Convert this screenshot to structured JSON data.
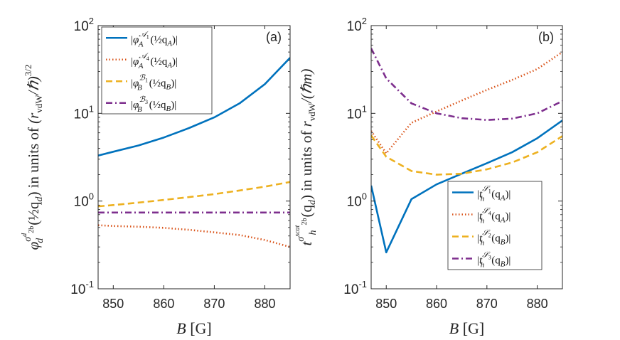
{
  "chart_data": [
    {
      "id": "a",
      "type": "line",
      "panel_label": "(a)",
      "title": "",
      "xlabel": "B [G]",
      "ylabel": "φ_d^{σ^d_{2b}}(½q_d) in units of (r_vdW/ℏ)^{3/2}",
      "ylabel_parts": {
        "sym": "φ",
        "sub": "d",
        "sup": "σ",
        "supsup": "d",
        "supsub": "2b",
        "arg": "(½q",
        "argsub": "d",
        "argclose": ")",
        "units": " in units of ",
        "unitsexpr": "(r",
        "unitssub": "vdW",
        "unitsrest": "/ℏ)",
        "unitssup": "3/2"
      },
      "xlim": [
        847,
        885
      ],
      "ylim": [
        0.1,
        100
      ],
      "yscale": "log",
      "xticks": [
        850,
        860,
        870,
        880
      ],
      "xtick_labels": [
        "850",
        "860",
        "870",
        "880"
      ],
      "yticks": [
        0.1,
        1,
        10,
        100
      ],
      "ytick_labels": [
        {
          "base": "10",
          "exp": "-1"
        },
        {
          "base": "10",
          "exp": "0"
        },
        {
          "base": "10",
          "exp": "1"
        },
        {
          "base": "10",
          "exp": "2"
        }
      ],
      "legend_location": "top-left",
      "series": [
        {
          "name": "|φ_A^{A_1}(½q_A)|",
          "label_parts": {
            "sym": "φ",
            "sub": "A",
            "sup": "𝒜",
            "supsub": "1",
            "arg": "(½q",
            "argsub": "A",
            "argclose": ")"
          },
          "color": "#0072BD",
          "dash": "solid",
          "x": [
            847,
            850,
            855,
            860,
            865,
            870,
            875,
            880,
            885
          ],
          "y": [
            3.3,
            3.65,
            4.3,
            5.3,
            6.8,
            9.0,
            13.0,
            21.5,
            43.0
          ]
        },
        {
          "name": "|φ_A^{A_4}(½q_A)|",
          "label_parts": {
            "sym": "φ",
            "sub": "A",
            "sup": "𝒜",
            "supsub": "4",
            "arg": "(½q",
            "argsub": "A",
            "argclose": ")"
          },
          "color": "#D95319",
          "dash": "dotted",
          "x": [
            847,
            850,
            855,
            860,
            865,
            870,
            875,
            880,
            885
          ],
          "y": [
            0.53,
            0.52,
            0.51,
            0.495,
            0.47,
            0.44,
            0.41,
            0.36,
            0.3
          ]
        },
        {
          "name": "|φ_B^{B_1}(½q_B)|",
          "label_parts": {
            "sym": "φ",
            "sub": "B",
            "sup": "ℬ",
            "supsub": "1",
            "arg": "(½q",
            "argsub": "B",
            "argclose": ")"
          },
          "color": "#EDB120",
          "dash": "dashed",
          "x": [
            847,
            850,
            855,
            860,
            865,
            870,
            875,
            880,
            885
          ],
          "y": [
            0.87,
            0.9,
            0.96,
            1.03,
            1.11,
            1.2,
            1.32,
            1.46,
            1.65
          ]
        },
        {
          "name": "|φ_B^{B_3}(½q_B)|",
          "label_parts": {
            "sym": "φ",
            "sub": "B",
            "sup": "ℬ",
            "supsub": "3",
            "arg": "(½q",
            "argsub": "B",
            "argclose": ")"
          },
          "color": "#7E2F8E",
          "dash": "dashdot",
          "x": [
            847,
            850,
            855,
            860,
            865,
            870,
            875,
            880,
            885
          ],
          "y": [
            0.74,
            0.74,
            0.74,
            0.74,
            0.74,
            0.74,
            0.74,
            0.74,
            0.74
          ]
        }
      ]
    },
    {
      "id": "b",
      "type": "line",
      "panel_label": "(b)",
      "title": "",
      "xlabel": "B [G]",
      "ylabel": "t_h^{σ^{scat}_{2b}}(q_d) in units of r_vdW/(ℏm)",
      "ylabel_parts": {
        "sym": "t",
        "sub": "h",
        "sup": "σ",
        "supsup": "scat",
        "supsub": "2b",
        "arg": "(q",
        "argsub": "d",
        "argclose": ")",
        "units": " in units of ",
        "unitsexpr": "r",
        "unitssub": "vdW",
        "unitsrest": "/(ℏm)",
        "unitssup": ""
      },
      "xlim": [
        847,
        885
      ],
      "ylim": [
        0.1,
        100
      ],
      "yscale": "log",
      "xticks": [
        850,
        860,
        870,
        880
      ],
      "xtick_labels": [
        "850",
        "860",
        "870",
        "880"
      ],
      "yticks": [
        0.1,
        1,
        10,
        100
      ],
      "ytick_labels": [
        {
          "base": "10",
          "exp": "-1"
        },
        {
          "base": "10",
          "exp": "0"
        },
        {
          "base": "10",
          "exp": "1"
        },
        {
          "base": "10",
          "exp": "2"
        }
      ],
      "legend_location": "bottom-right",
      "series": [
        {
          "name": "|t_h^{S_1}(q_A)|",
          "label_parts": {
            "sym": "t",
            "sub": "h",
            "sup": "𝒮",
            "supsub": "1",
            "arg": "(q",
            "argsub": "A",
            "argclose": ")"
          },
          "color": "#0072BD",
          "dash": "solid",
          "x": [
            847,
            850,
            855,
            860,
            865,
            870,
            875,
            880,
            885
          ],
          "y": [
            1.5,
            0.26,
            1.05,
            1.55,
            2.05,
            2.7,
            3.6,
            5.2,
            8.3
          ]
        },
        {
          "name": "|t_h^{S_4}(q_A)|",
          "label_parts": {
            "sym": "t",
            "sub": "h",
            "sup": "𝒮",
            "supsub": "4",
            "arg": "(q",
            "argsub": "A",
            "argclose": ")"
          },
          "color": "#D95319",
          "dash": "dotted",
          "x": [
            847,
            850,
            855,
            860,
            865,
            870,
            875,
            880,
            885
          ],
          "y": [
            6.3,
            3.5,
            7.8,
            10.5,
            14.0,
            18.5,
            24.0,
            32.0,
            50.0
          ]
        },
        {
          "name": "|t_h^{S_2}(q_B)|",
          "label_parts": {
            "sym": "t",
            "sub": "h",
            "sup": "𝒮",
            "supsub": "2",
            "arg": "(q",
            "argsub": "B",
            "argclose": ")"
          },
          "color": "#EDB120",
          "dash": "dashed",
          "x": [
            847,
            850,
            855,
            860,
            865,
            870,
            875,
            880,
            885
          ],
          "y": [
            5.6,
            3.2,
            2.2,
            2.0,
            2.05,
            2.3,
            2.75,
            3.6,
            5.5
          ]
        },
        {
          "name": "|t_h^{S_3}(q_B)|",
          "label_parts": {
            "sym": "t",
            "sub": "h",
            "sup": "𝒮",
            "supsub": "3",
            "arg": "(q",
            "argsub": "B",
            "argclose": ")"
          },
          "color": "#7E2F8E",
          "dash": "dashdot",
          "x": [
            847,
            850,
            855,
            860,
            865,
            870,
            875,
            880,
            885
          ],
          "y": [
            55.0,
            25.0,
            13.0,
            10.0,
            8.8,
            8.4,
            8.7,
            10.0,
            13.8
          ]
        }
      ]
    }
  ]
}
